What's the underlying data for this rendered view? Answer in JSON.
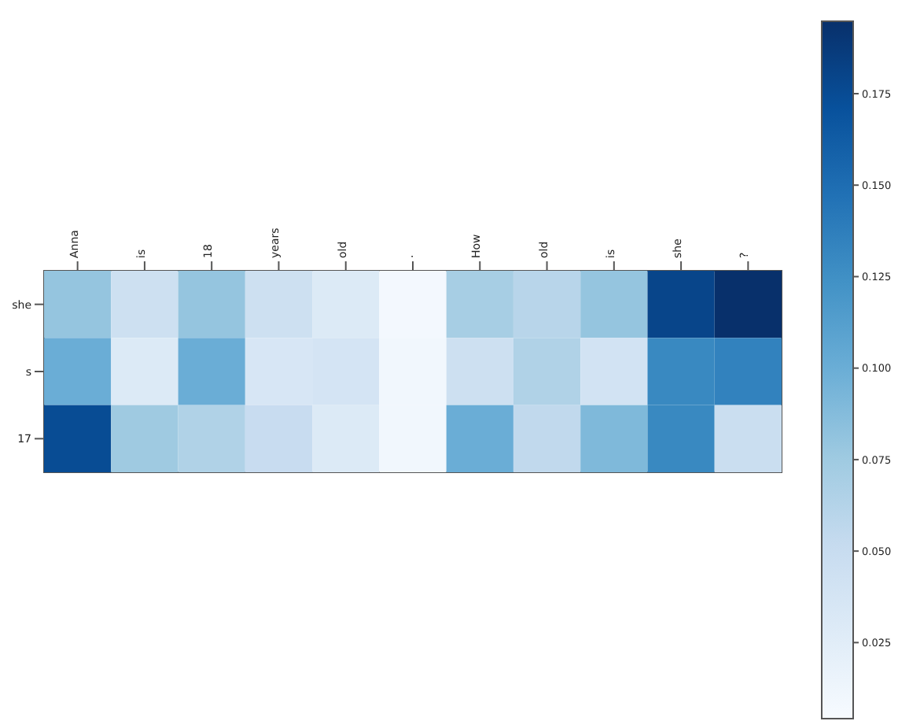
{
  "chart_data": {
    "type": "heatmap",
    "categories": [
      "Anna",
      "is",
      "18",
      "years",
      "old",
      ".",
      "How",
      "old",
      "is",
      "she",
      "?"
    ],
    "y_categories": [
      "she",
      "s",
      "17"
    ],
    "cells": [
      [
        0.08,
        0.045,
        0.08,
        0.045,
        0.03,
        0.008,
        0.07,
        0.06,
        0.08,
        0.18,
        0.195
      ],
      [
        0.1,
        0.03,
        0.1,
        0.035,
        0.038,
        0.01,
        0.045,
        0.065,
        0.04,
        0.13,
        0.135
      ],
      [
        0.175,
        0.075,
        0.065,
        0.05,
        0.03,
        0.01,
        0.1,
        0.055,
        0.09,
        0.13,
        0.048
      ]
    ],
    "clim": [
      0.004,
      0.195
    ],
    "cticks": [
      {
        "value": 0.025,
        "label": "0.025"
      },
      {
        "value": 0.05,
        "label": "0.050"
      },
      {
        "value": 0.075,
        "label": "0.075"
      },
      {
        "value": 0.1,
        "label": "0.100"
      },
      {
        "value": 0.125,
        "label": "0.125"
      },
      {
        "value": 0.15,
        "label": "0.150"
      },
      {
        "value": 0.175,
        "label": "0.175"
      }
    ]
  }
}
